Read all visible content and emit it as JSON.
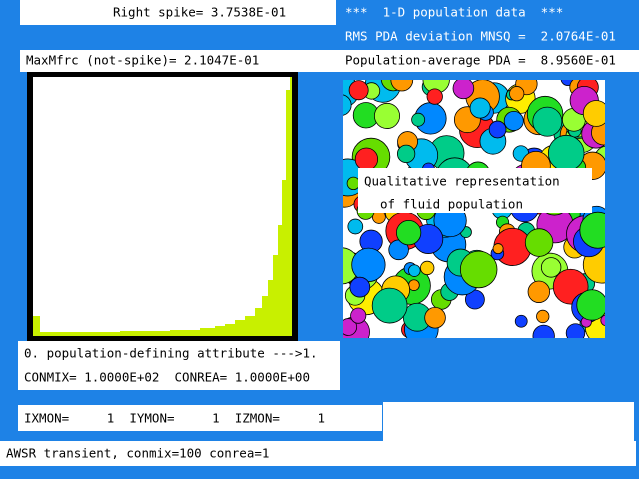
{
  "header": {
    "right_spike": "Right spike= 3.7538E-01",
    "title": "***  1-D population data  ***",
    "rms": "RMS PDA deviation MNSQ =  2.0764E-01",
    "max_mfrc": "MaxMfrc (not-spike)= 2.1047E-01",
    "population_average": "Population-average PDA =  8.9560E-01"
  },
  "panel": {
    "label_line1": "Qualitative representation",
    "label_line2": "of fluid population"
  },
  "attributes": {
    "line1": "0. population-defining attribute --->1.",
    "line2": "CONMIX= 1.0000E+02  CONREA= 1.0000E+00"
  },
  "monitor": "IXMON=     1  IYMON=     1  IZMON=     1",
  "status": "AWSR transient, conmix=100 conrea=1"
}
